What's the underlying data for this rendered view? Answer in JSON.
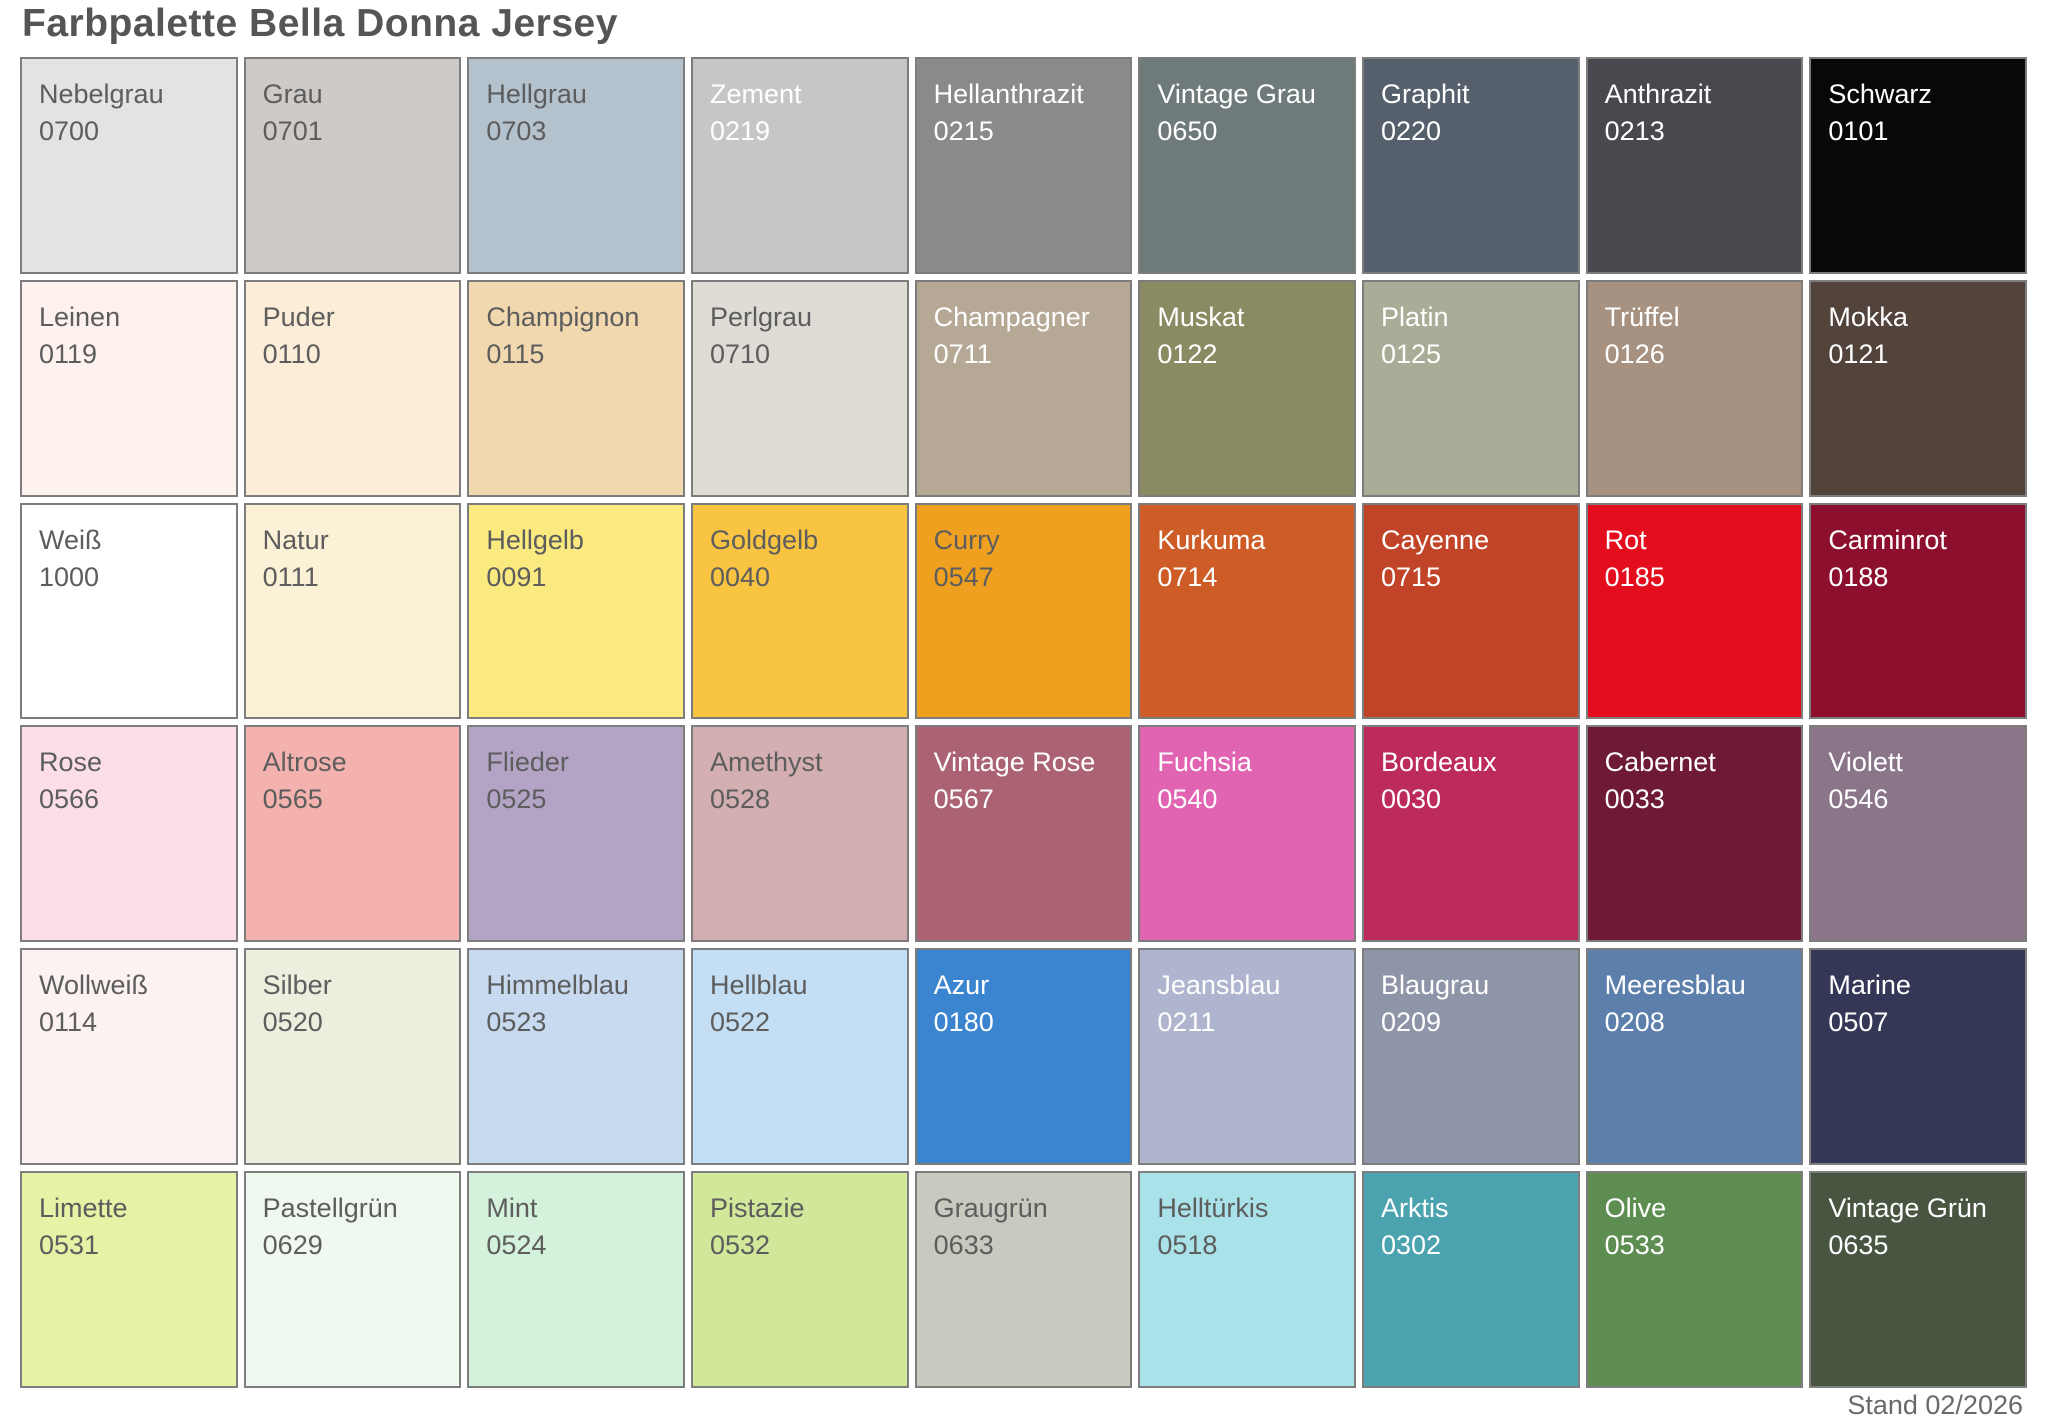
{
  "title": "Farbpalette Bella Donna Jersey",
  "footer": {
    "version_date": "Stand 02/2026"
  },
  "colors": {
    "background": "#ffffff",
    "swatch_border": "#7d7d7d",
    "text_dark": "#5d5d5d",
    "text_light": "#ffffff",
    "title_text": "#555555"
  },
  "palette": {
    "columns": 9,
    "rows": 6,
    "swatches": [
      {
        "name": "Nebelgrau",
        "code": "0700",
        "color": "#e3e3e1",
        "text": "dark"
      },
      {
        "name": "Grau",
        "code": "0701",
        "color": "#cecac7",
        "text": "dark"
      },
      {
        "name": "Hellgrau",
        "code": "0703",
        "color": "#b4c2ce",
        "text": "dark"
      },
      {
        "name": "Zement",
        "code": "0219",
        "color": "#c5c7c6",
        "text": "light"
      },
      {
        "name": "Hellanthrazit",
        "code": "0215",
        "color": "#8b8a88",
        "text": "light"
      },
      {
        "name": "Vintage Grau",
        "code": "0650",
        "color": "#6e7b7a",
        "text": "light"
      },
      {
        "name": "Graphit",
        "code": "0220",
        "color": "#55606c",
        "text": "light"
      },
      {
        "name": "Anthrazit",
        "code": "0213",
        "color": "#4b474e",
        "text": "light"
      },
      {
        "name": "Schwarz",
        "code": "0101",
        "color": "#080808",
        "text": "light"
      },
      {
        "name": "Leinen",
        "code": "0119",
        "color": "#fdf2ee",
        "text": "dark"
      },
      {
        "name": "Puder",
        "code": "0110",
        "color": "#fcedd9",
        "text": "dark"
      },
      {
        "name": "Champignon",
        "code": "0115",
        "color": "#f1d8af",
        "text": "dark"
      },
      {
        "name": "Perlgrau",
        "code": "0710",
        "color": "#dedcd4",
        "text": "dark"
      },
      {
        "name": "Champagner",
        "code": "0711",
        "color": "#b5a895",
        "text": "light"
      },
      {
        "name": "Muskat",
        "code": "0122",
        "color": "#8a8b63",
        "text": "light"
      },
      {
        "name": "Platin",
        "code": "0125",
        "color": "#abac97",
        "text": "light"
      },
      {
        "name": "Trüffel",
        "code": "0126",
        "color": "#a79281",
        "text": "light"
      },
      {
        "name": "Mokka",
        "code": "0121",
        "color": "#52433b",
        "text": "light"
      },
      {
        "name": "Weiß",
        "code": "1000",
        "color": "#ffffff",
        "text": "dark"
      },
      {
        "name": "Natur",
        "code": "0111",
        "color": "#fbf1d6",
        "text": "dark"
      },
      {
        "name": "Hellgelb",
        "code": "0091",
        "color": "#fbea80",
        "text": "dark"
      },
      {
        "name": "Goldgelb",
        "code": "0040",
        "color": "#f9c442",
        "text": "dark"
      },
      {
        "name": "Curry",
        "code": "0547",
        "color": "#f0a01f",
        "text": "dark"
      },
      {
        "name": "Kurkuma",
        "code": "0714",
        "color": "#cd5c26",
        "text": "light"
      },
      {
        "name": "Cayenne",
        "code": "0715",
        "color": "#c14428",
        "text": "light"
      },
      {
        "name": "Rot",
        "code": "0185",
        "color": "#e40d1e",
        "text": "light"
      },
      {
        "name": "Carminrot",
        "code": "0188",
        "color": "#8d0f2e",
        "text": "light"
      },
      {
        "name": "Rose",
        "code": "0566",
        "color": "#fcdfe6",
        "text": "dark"
      },
      {
        "name": "Altrose",
        "code": "0565",
        "color": "#f3b2ae",
        "text": "dark"
      },
      {
        "name": "Flieder",
        "code": "0525",
        "color": "#b3a4c6",
        "text": "dark"
      },
      {
        "name": "Amethyst",
        "code": "0528",
        "color": "#d4afb1",
        "text": "dark"
      },
      {
        "name": "Vintage Rose",
        "code": "0567",
        "color": "#ab6373",
        "text": "light"
      },
      {
        "name": "Fuchsia",
        "code": "0540",
        "color": "#e164b2",
        "text": "light"
      },
      {
        "name": "Bordeaux",
        "code": "0030",
        "color": "#bd2a5d",
        "text": "light"
      },
      {
        "name": "Cabernet",
        "code": "0033",
        "color": "#6f1938",
        "text": "light"
      },
      {
        "name": "Violett",
        "code": "0546",
        "color": "#8a7589",
        "text": "light"
      },
      {
        "name": "Wollweiß",
        "code": "0114",
        "color": "#fbf2f1",
        "text": "dark"
      },
      {
        "name": "Silber",
        "code": "0520",
        "color": "#eceede",
        "text": "dark"
      },
      {
        "name": "Himmelblau",
        "code": "0523",
        "color": "#c7daf0",
        "text": "dark"
      },
      {
        "name": "Hellblau",
        "code": "0522",
        "color": "#c4dff3",
        "text": "dark"
      },
      {
        "name": "Azur",
        "code": "0180",
        "color": "#3b84cf",
        "text": "light"
      },
      {
        "name": "Jeansblau",
        "code": "0211",
        "color": "#afb5ce",
        "text": "light"
      },
      {
        "name": "Blaugrau",
        "code": "0209",
        "color": "#8f95a8",
        "text": "light"
      },
      {
        "name": "Meeresblau",
        "code": "0208",
        "color": "#5c7fac",
        "text": "light"
      },
      {
        "name": "Marine",
        "code": "0507",
        "color": "#343856",
        "text": "light"
      },
      {
        "name": "Limette",
        "code": "0531",
        "color": "#e6f2a6",
        "text": "dark"
      },
      {
        "name": "Pastellgrün",
        "code": "0629",
        "color": "#f0f9f0",
        "text": "dark"
      },
      {
        "name": "Mint",
        "code": "0524",
        "color": "#d4f1dc",
        "text": "dark"
      },
      {
        "name": "Pistazie",
        "code": "0532",
        "color": "#d1e89a",
        "text": "dark"
      },
      {
        "name": "Graugrün",
        "code": "0633",
        "color": "#c8cabf",
        "text": "dark"
      },
      {
        "name": "Helltürkis",
        "code": "0518",
        "color": "#aae2ea",
        "text": "dark"
      },
      {
        "name": "Arktis",
        "code": "0302",
        "color": "#4ba3af",
        "text": "light"
      },
      {
        "name": "Olive",
        "code": "0533",
        "color": "#5e8d51",
        "text": "light"
      },
      {
        "name": "Vintage Grün",
        "code": "0635",
        "color": "#485541",
        "text": "light"
      }
    ]
  }
}
